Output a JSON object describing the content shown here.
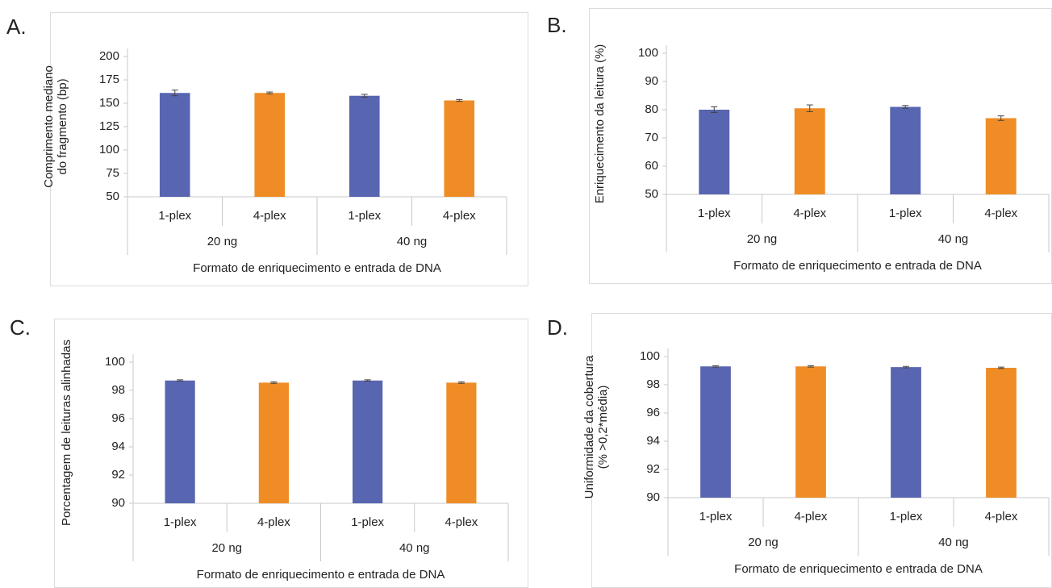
{
  "chart_data": [
    {
      "type": "bar",
      "label": "A.",
      "y_label": [
        "Comprimento mediano",
        "do fragmento (bp)"
      ],
      "x_label": "Formato de enriquecimento e entrada de DNA",
      "categories": [
        "1-plex",
        "4-plex",
        "1-plex",
        "4-plex"
      ],
      "groups": [
        "20 ng",
        "40 ng"
      ],
      "values": [
        161,
        161,
        158,
        153
      ],
      "errors": [
        3,
        1,
        1.5,
        1
      ],
      "colors": [
        "#5865b0",
        "#ef8c25",
        "#5865b0",
        "#ef8c25"
      ],
      "ylim": [
        50,
        200
      ],
      "yticks": [
        50,
        75,
        100,
        125,
        150,
        175,
        200
      ]
    },
    {
      "type": "bar",
      "label": "B.",
      "y_label": [
        "Enriquecimento da leitura (%)"
      ],
      "x_label": "Formato de enriquecimento e entrada de DNA",
      "categories": [
        "1-plex",
        "4-plex",
        "1-plex",
        "4-plex"
      ],
      "groups": [
        "20 ng",
        "40 ng"
      ],
      "values": [
        80,
        80.5,
        81,
        77
      ],
      "errors": [
        1,
        1.2,
        0.5,
        0.8
      ],
      "colors": [
        "#5865b0",
        "#ef8c25",
        "#5865b0",
        "#ef8c25"
      ],
      "ylim": [
        50,
        100
      ],
      "yticks": [
        50,
        60,
        70,
        80,
        90,
        100
      ]
    },
    {
      "type": "bar",
      "label": "C.",
      "y_label": [
        "Porcentagem de leituras alinhadas"
      ],
      "x_label": "Formato de enriquecimento e entrada de DNA",
      "categories": [
        "1-plex",
        "4-plex",
        "1-plex",
        "4-plex"
      ],
      "groups": [
        "20 ng",
        "40 ng"
      ],
      "values": [
        98.7,
        98.55,
        98.7,
        98.55
      ],
      "errors": [
        0.05,
        0.05,
        0.05,
        0.05
      ],
      "colors": [
        "#5865b0",
        "#ef8c25",
        "#5865b0",
        "#ef8c25"
      ],
      "ylim": [
        90,
        100
      ],
      "yticks": [
        90,
        92,
        94,
        96,
        98,
        100
      ]
    },
    {
      "type": "bar",
      "label": "D.",
      "y_label": [
        "Uniformidade da cobertura",
        "(% >0,2*média)"
      ],
      "x_label": "Formato de enriquecimento e entrada de DNA",
      "categories": [
        "1-plex",
        "4-plex",
        "1-plex",
        "4-plex"
      ],
      "groups": [
        "20 ng",
        "40 ng"
      ],
      "values": [
        99.3,
        99.3,
        99.25,
        99.2
      ],
      "errors": [
        0.05,
        0.05,
        0.05,
        0.05
      ],
      "colors": [
        "#5865b0",
        "#ef8c25",
        "#5865b0",
        "#ef8c25"
      ],
      "ylim": [
        90,
        100
      ],
      "yticks": [
        90,
        92,
        94,
        96,
        98,
        100
      ]
    }
  ]
}
